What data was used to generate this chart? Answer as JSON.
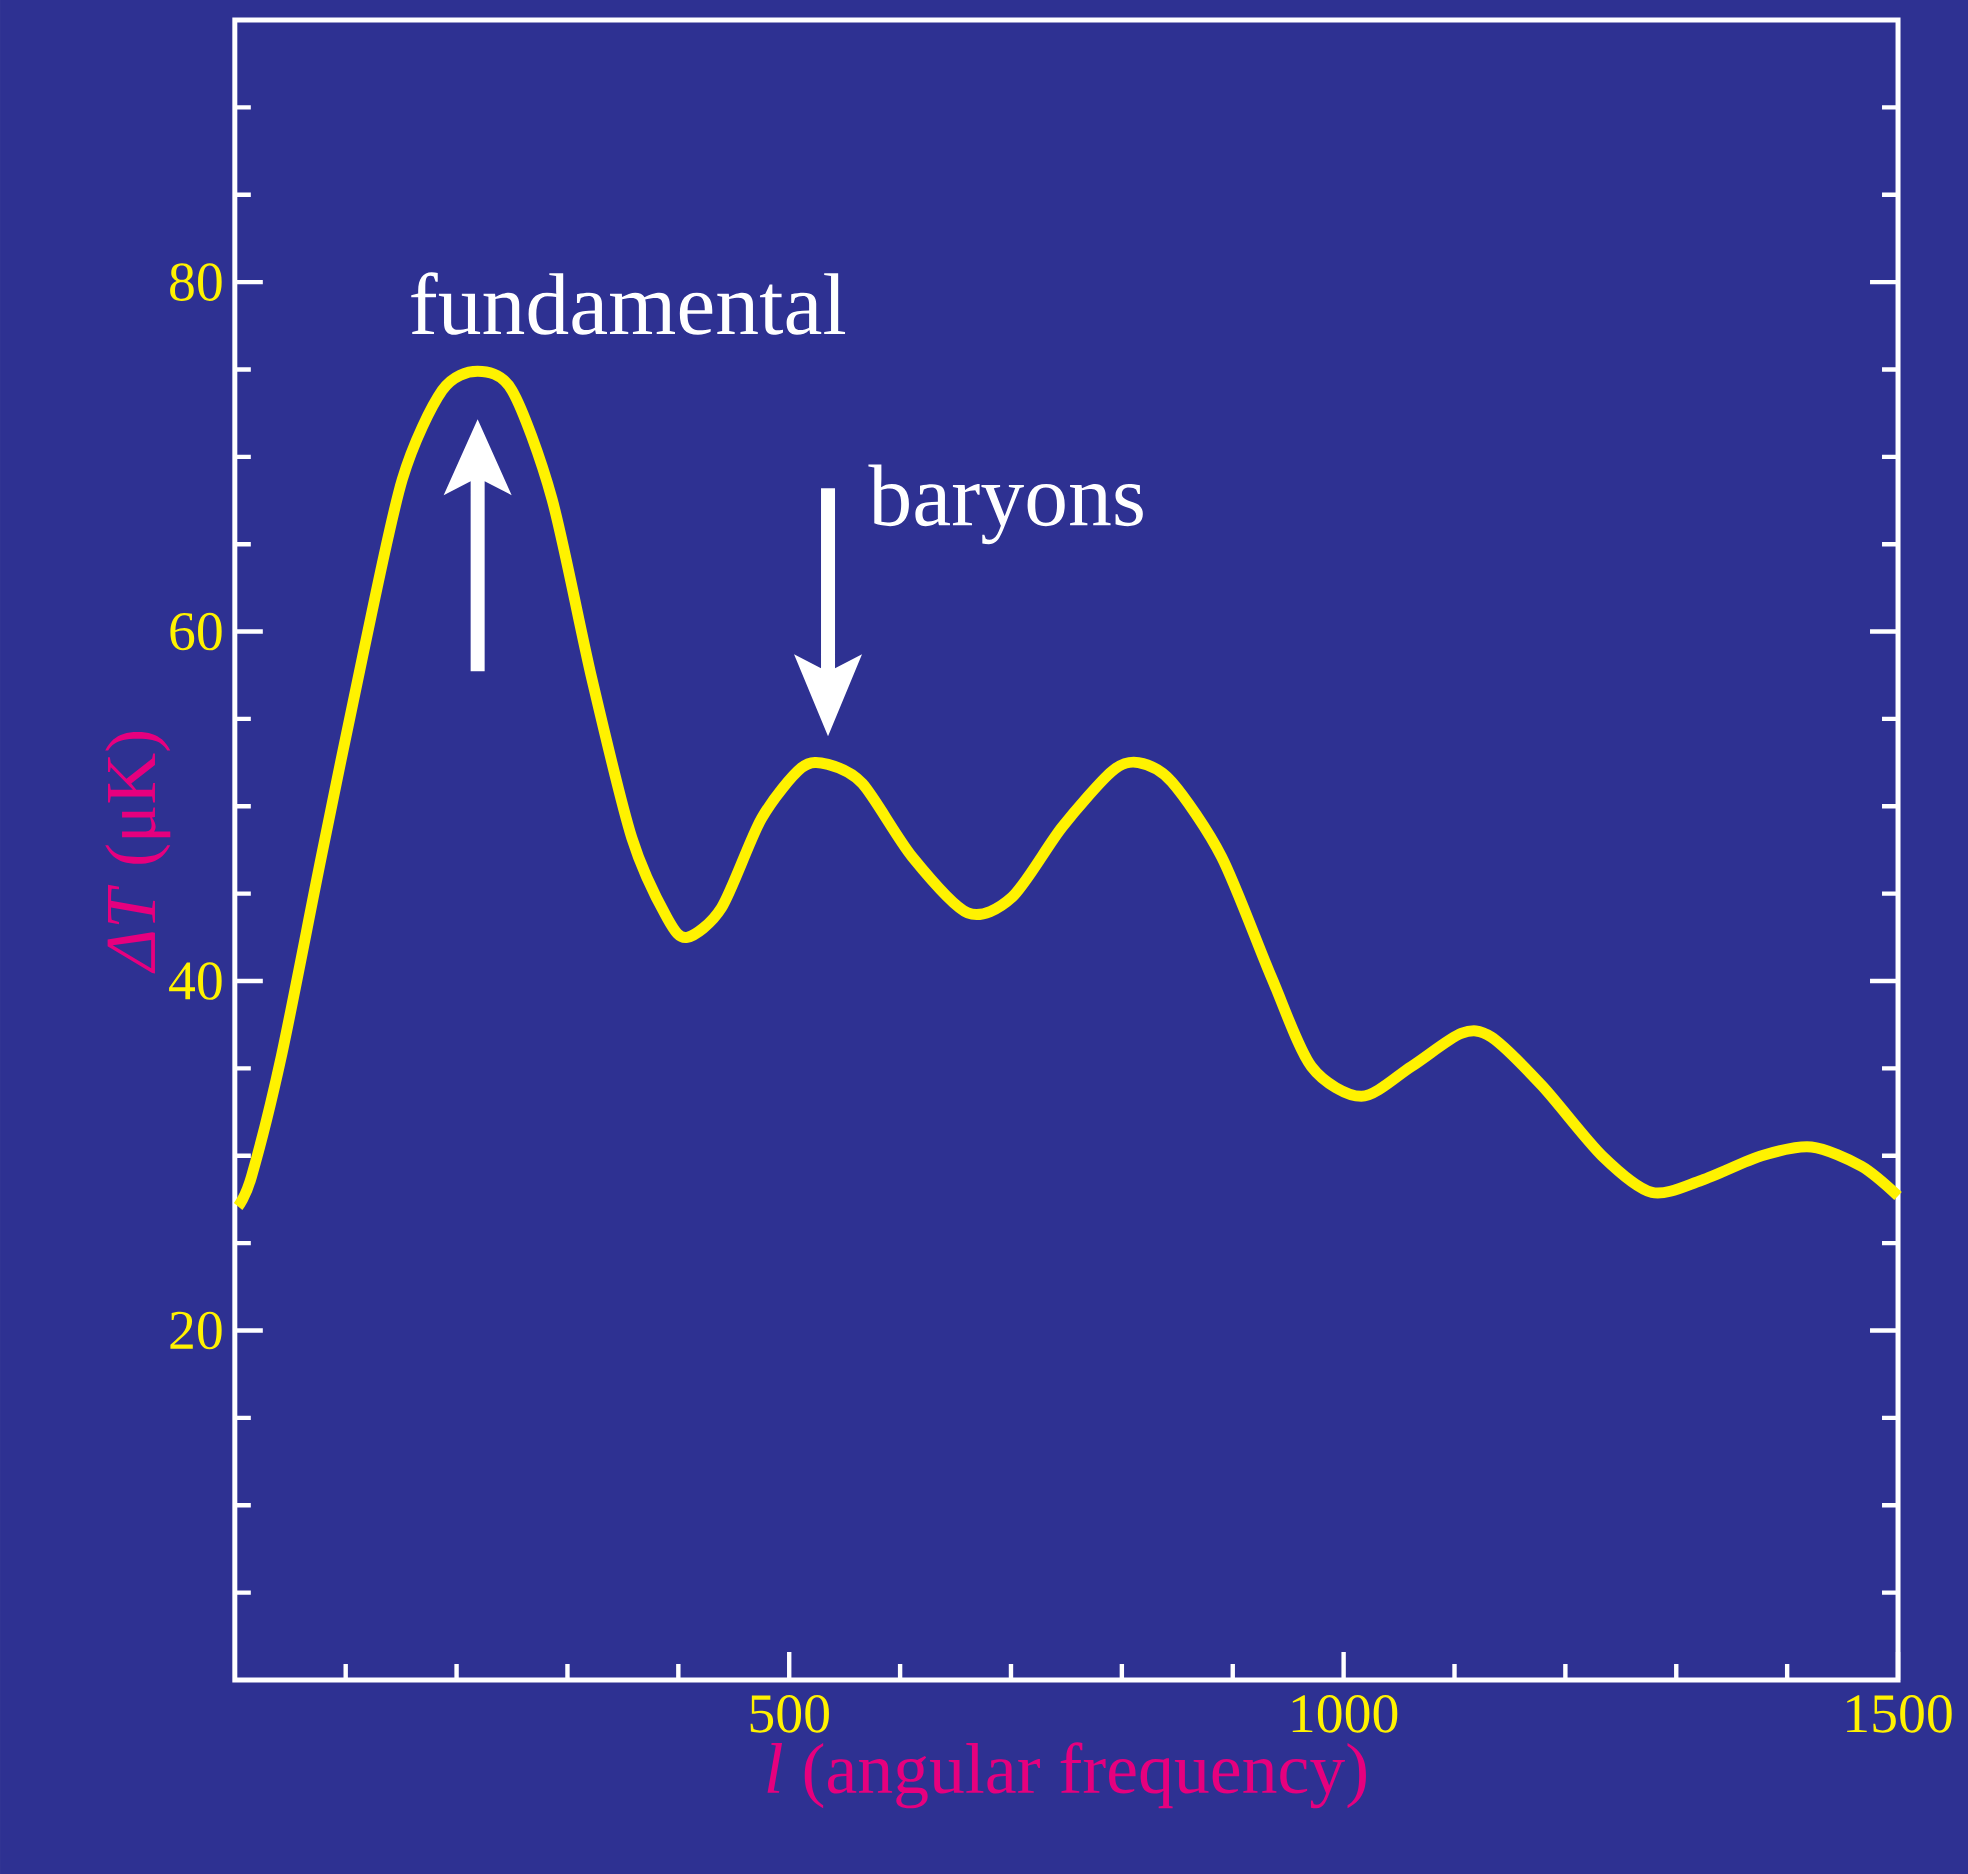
{
  "chart_data": {
    "type": "line",
    "xlabel": "*l*  (angular frequency)",
    "ylabel": "*ΔT* (μK)",
    "x": [
      3,
      15,
      42,
      78,
      115,
      151,
      187,
      219,
      250,
      286,
      322,
      358,
      390,
      408,
      439,
      475,
      511,
      535,
      566,
      611,
      661,
      701,
      746,
      791,
      815,
      845,
      890,
      935,
      971,
      1016,
      1061,
      1106,
      1133,
      1179,
      1233,
      1278,
      1323,
      1377,
      1422,
      1467,
      1500
    ],
    "values": [
      27.1,
      28.8,
      35.7,
      47.1,
      58.5,
      68.7,
      73.8,
      74.9,
      73.8,
      67.6,
      57.3,
      48.2,
      43.6,
      42.5,
      44.2,
      49.3,
      52.2,
      52.4,
      51.3,
      47.1,
      43.9,
      44.8,
      48.8,
      52.0,
      52.5,
      51.4,
      47.1,
      40.2,
      35.1,
      33.4,
      35.1,
      37.0,
      36.8,
      34.0,
      30.0,
      27.9,
      28.6,
      30.0,
      30.5,
      29.4,
      27.7
    ],
    "color": "#fff200",
    "xlim": [
      0,
      1500
    ],
    "ylim": [
      0,
      95
    ],
    "xticks": [
      {
        "value": 100,
        "label": null
      },
      {
        "value": 200,
        "label": null
      },
      {
        "value": 300,
        "label": null
      },
      {
        "value": 400,
        "label": null
      },
      500,
      {
        "value": 600,
        "label": null
      },
      {
        "value": 700,
        "label": null
      },
      {
        "value": 800,
        "label": null
      },
      {
        "value": 900,
        "label": null
      },
      1000,
      {
        "value": 1100,
        "label": null
      },
      {
        "value": 1200,
        "label": null
      },
      {
        "value": 1300,
        "label": null
      },
      {
        "value": 1400,
        "label": null
      },
      1500
    ],
    "yticks": [
      {
        "value": 5,
        "label": null
      },
      {
        "value": 10,
        "label": null
      },
      {
        "value": 15,
        "label": null
      },
      20,
      {
        "value": 25,
        "label": null
      },
      {
        "value": 30,
        "label": null
      },
      {
        "value": 35,
        "label": null
      },
      40,
      {
        "value": 45,
        "label": null
      },
      {
        "value": 50,
        "label": null
      },
      {
        "value": 55,
        "label": null
      },
      60,
      {
        "value": 65,
        "label": null
      },
      {
        "value": 70,
        "label": null
      },
      {
        "value": 75,
        "label": null
      },
      80,
      {
        "value": 85,
        "label": null
      },
      {
        "value": 90,
        "label": null
      }
    ],
    "annotations": [
      {
        "text": "fundamental",
        "x": 219,
        "y": 74.9
      },
      {
        "text": "baryons",
        "x": 535,
        "y": 52.4
      }
    ],
    "grid": false,
    "marker": "none",
    "line_style": "solid"
  }
}
